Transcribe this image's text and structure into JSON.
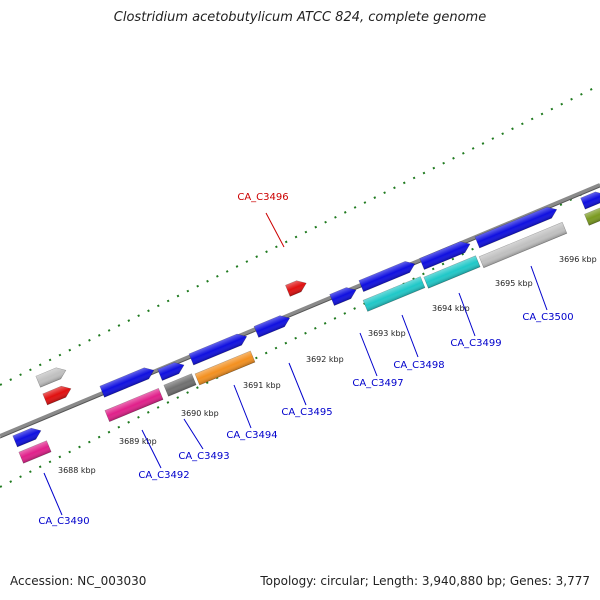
{
  "title": "Clostridium acetobutylicum ATCC 824, complete genome",
  "footer": {
    "accession": "Accession: NC_003030",
    "summary": "Topology: circular; Length: 3,940,880 bp; Genes: 3,777"
  },
  "colors": {
    "backbone": "#8a8a8a",
    "tick": "#1f7a1f",
    "label_blue": "#0000cc",
    "label_red": "#cc0000",
    "blue": "#1010e0",
    "pink": "#e0208a",
    "gray": "#707070",
    "orange": "#f39020",
    "cyan": "#20c8c8",
    "lightgray": "#c0c0c0",
    "red": "#e01010",
    "olive": "#7a9a20"
  },
  "kbp_ticks": [
    "3688 kbp",
    "3689 kbp",
    "3690 kbp",
    "3691 kbp",
    "3692 kbp",
    "3693 kbp",
    "3694 kbp",
    "3695 kbp",
    "3696 kbp"
  ],
  "features": [
    {
      "id": "f1",
      "track": "fwd",
      "color": "blue"
    },
    {
      "id": "f2",
      "track": "rev",
      "color": "pink"
    },
    {
      "id": "f3",
      "track": "fwd",
      "color": "blue"
    },
    {
      "id": "f4",
      "track": "rev",
      "color": "pink"
    },
    {
      "id": "f5",
      "track": "fwd",
      "color": "blue"
    },
    {
      "id": "f6",
      "track": "rev",
      "color": "gray"
    },
    {
      "id": "f7",
      "track": "fwd",
      "color": "blue"
    },
    {
      "id": "f8",
      "track": "rev",
      "color": "orange"
    },
    {
      "id": "f9",
      "track": "fwd",
      "color": "blue"
    },
    {
      "id": "f10",
      "track": "fwd",
      "color": "blue"
    },
    {
      "id": "f11",
      "track": "fwd",
      "color": "blue"
    },
    {
      "id": "f12",
      "track": "rev",
      "color": "cyan"
    },
    {
      "id": "f13",
      "track": "fwd",
      "color": "blue"
    },
    {
      "id": "f14",
      "track": "rev",
      "color": "cyan"
    },
    {
      "id": "f15",
      "track": "fwd",
      "color": "blue"
    },
    {
      "id": "f16",
      "track": "rev",
      "color": "lightgray"
    },
    {
      "id": "f17",
      "track": "fwd",
      "color": "blue"
    },
    {
      "id": "f18",
      "track": "rev",
      "color": "olive"
    },
    {
      "id": "f19",
      "track": "outer",
      "color": "lightgray"
    },
    {
      "id": "f20",
      "track": "outer",
      "color": "red"
    },
    {
      "id": "f21",
      "track": "outer",
      "color": "red"
    }
  ],
  "gene_labels": [
    {
      "text": "CA_C3490",
      "color": "label_blue"
    },
    {
      "text": "CA_C3492",
      "color": "label_blue"
    },
    {
      "text": "CA_C3493",
      "color": "label_blue"
    },
    {
      "text": "CA_C3494",
      "color": "label_blue"
    },
    {
      "text": "CA_C3495",
      "color": "label_blue"
    },
    {
      "text": "CA_C3496",
      "color": "label_red"
    },
    {
      "text": "CA_C3497",
      "color": "label_blue"
    },
    {
      "text": "CA_C3498",
      "color": "label_blue"
    },
    {
      "text": "CA_C3499",
      "color": "label_blue"
    },
    {
      "text": "CA_C3500",
      "color": "label_blue"
    }
  ]
}
